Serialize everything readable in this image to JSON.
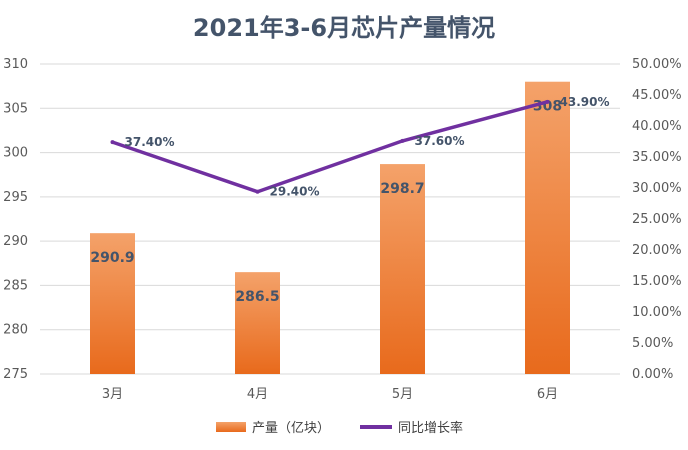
{
  "chart_data": {
    "type": "bar+line",
    "title": "2021年3-6月芯片产量情况",
    "categories": [
      "3月",
      "4月",
      "5月",
      "6月"
    ],
    "series": [
      {
        "name": "产量（亿块）",
        "type": "bar",
        "axis": "left",
        "values": [
          290.9,
          286.5,
          298.7,
          308
        ],
        "labels": [
          "290.9",
          "286.5",
          "298.7",
          "308"
        ],
        "color": "#ed7d31"
      },
      {
        "name": "同比增长率",
        "type": "line",
        "axis": "right",
        "values": [
          37.4,
          29.4,
          37.6,
          43.9
        ],
        "labels": [
          "37.40%",
          "29.40%",
          "37.60%",
          "43.90%"
        ],
        "color": "#7030a0"
      }
    ],
    "y_left": {
      "min": 275,
      "max": 310,
      "ticks": [
        "275",
        "280",
        "285",
        "290",
        "295",
        "300",
        "305",
        "310"
      ]
    },
    "y_right": {
      "min": 0,
      "max": 50,
      "ticks": [
        "0.00%",
        "5.00%",
        "10.00%",
        "15.00%",
        "20.00%",
        "25.00%",
        "30.00%",
        "35.00%",
        "40.00%",
        "45.00%",
        "50.00%"
      ]
    },
    "grid": true,
    "legend_position": "bottom"
  }
}
